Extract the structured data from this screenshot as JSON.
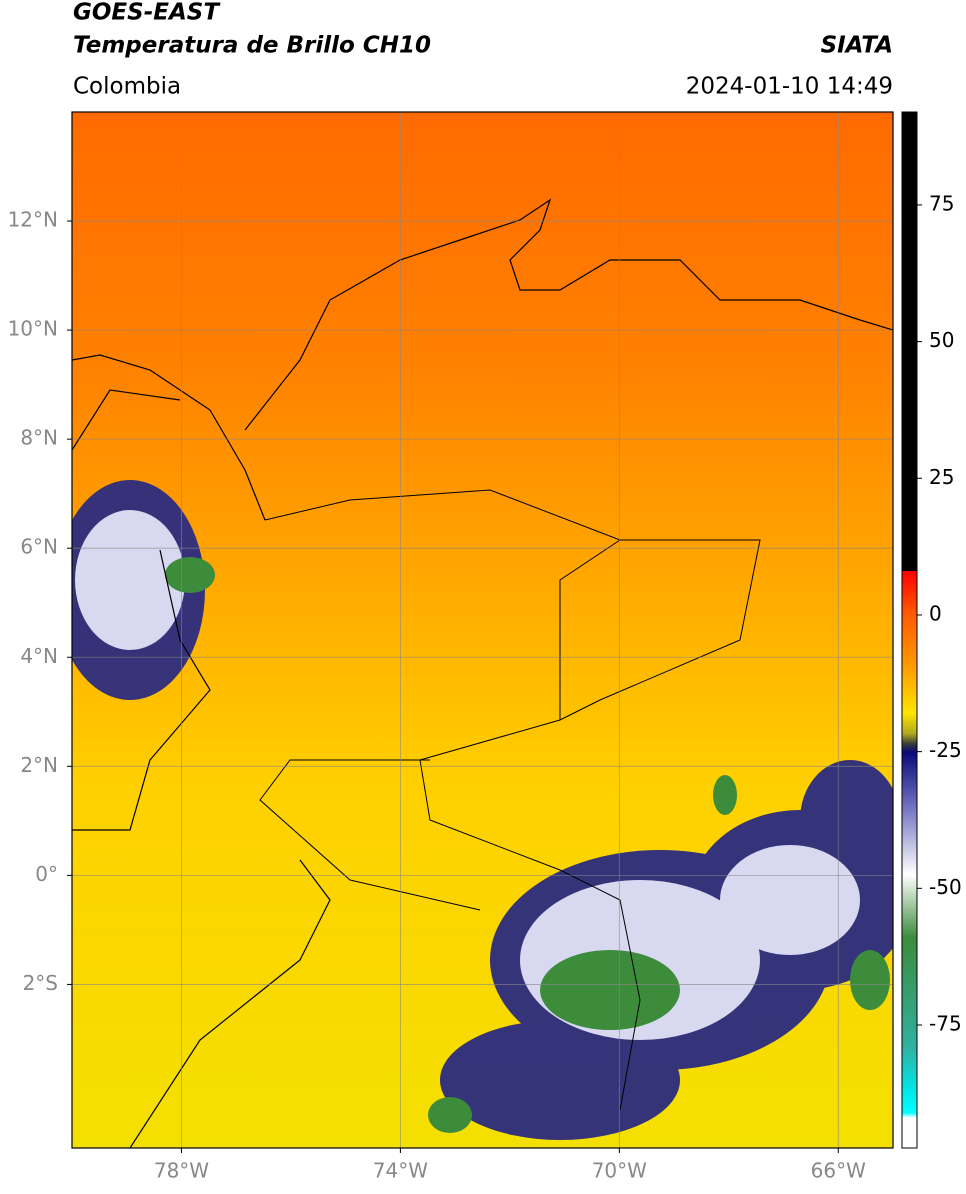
{
  "header": {
    "title": "GOES-EAST",
    "subtitle": "Temperatura de Brillo CH10",
    "source": "SIATA",
    "region": "Colombia",
    "datetime": "2024-01-10 14:49"
  },
  "map": {
    "xlim": [
      -80,
      -65
    ],
    "ylim": [
      -5,
      14
    ],
    "grid": true,
    "xticks": [
      {
        "value": -78,
        "label": "78°W"
      },
      {
        "value": -74,
        "label": "74°W"
      },
      {
        "value": -70,
        "label": "70°W"
      },
      {
        "value": -66,
        "label": "66°W"
      }
    ],
    "yticks": [
      {
        "value": 12,
        "label": "12°N"
      },
      {
        "value": 10,
        "label": "10°N"
      },
      {
        "value": 8,
        "label": "8°N"
      },
      {
        "value": 6,
        "label": "6°N"
      },
      {
        "value": 4,
        "label": "4°N"
      },
      {
        "value": 2,
        "label": "2°N"
      },
      {
        "value": 0,
        "label": "0°"
      },
      {
        "value": -2,
        "label": "2°S"
      }
    ]
  },
  "colorbar": {
    "lim": [
      -97.5,
      92
    ],
    "ticks": [
      75,
      50,
      25,
      0,
      -25,
      -50,
      -75
    ]
  }
}
